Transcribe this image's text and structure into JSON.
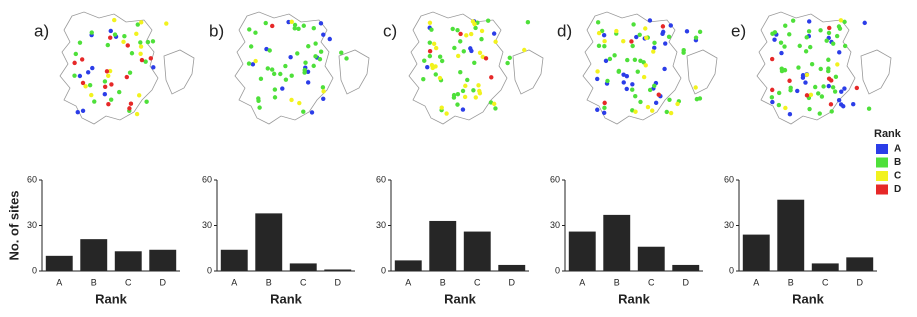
{
  "chart_data": [
    {
      "type": "bar",
      "panel_label": "a)",
      "y_label": "No. of sites",
      "x_label": "Rank",
      "categories": [
        "A",
        "B",
        "C",
        "D"
      ],
      "values": [
        10,
        21,
        13,
        14
      ],
      "color": "#262626",
      "ylim": [
        0,
        60
      ],
      "yticks": [
        0,
        30,
        60
      ]
    },
    {
      "type": "bar",
      "panel_label": "b)",
      "x_label": "Rank",
      "categories": [
        "A",
        "B",
        "C",
        "D"
      ],
      "values": [
        14,
        38,
        5,
        1
      ],
      "color": "#262626",
      "ylim": [
        0,
        60
      ],
      "yticks": [
        0,
        30,
        60
      ]
    },
    {
      "type": "bar",
      "panel_label": "c)",
      "x_label": "Rank",
      "categories": [
        "A",
        "B",
        "C",
        "D"
      ],
      "values": [
        7,
        33,
        26,
        4
      ],
      "color": "#262626",
      "ylim": [
        0,
        60
      ],
      "yticks": [
        0,
        30,
        60
      ]
    },
    {
      "type": "bar",
      "panel_label": "d)",
      "x_label": "Rank",
      "categories": [
        "A",
        "B",
        "C",
        "D"
      ],
      "values": [
        26,
        37,
        16,
        4
      ],
      "color": "#262626",
      "ylim": [
        0,
        60
      ],
      "yticks": [
        0,
        30,
        60
      ]
    },
    {
      "type": "bar",
      "panel_label": "e)",
      "x_label": "Rank",
      "categories": [
        "A",
        "B",
        "C",
        "D"
      ],
      "values": [
        24,
        47,
        5,
        9
      ],
      "color": "#262626",
      "ylim": [
        0,
        60
      ],
      "yticks": [
        0,
        30,
        60
      ]
    }
  ],
  "legend": {
    "title": "Rank",
    "items": [
      {
        "name": "A",
        "color": "#2b3de8"
      },
      {
        "name": "B",
        "color": "#4ee03a"
      },
      {
        "name": "C",
        "color": "#f2f21e"
      },
      {
        "name": "D",
        "color": "#e62828"
      }
    ]
  }
}
